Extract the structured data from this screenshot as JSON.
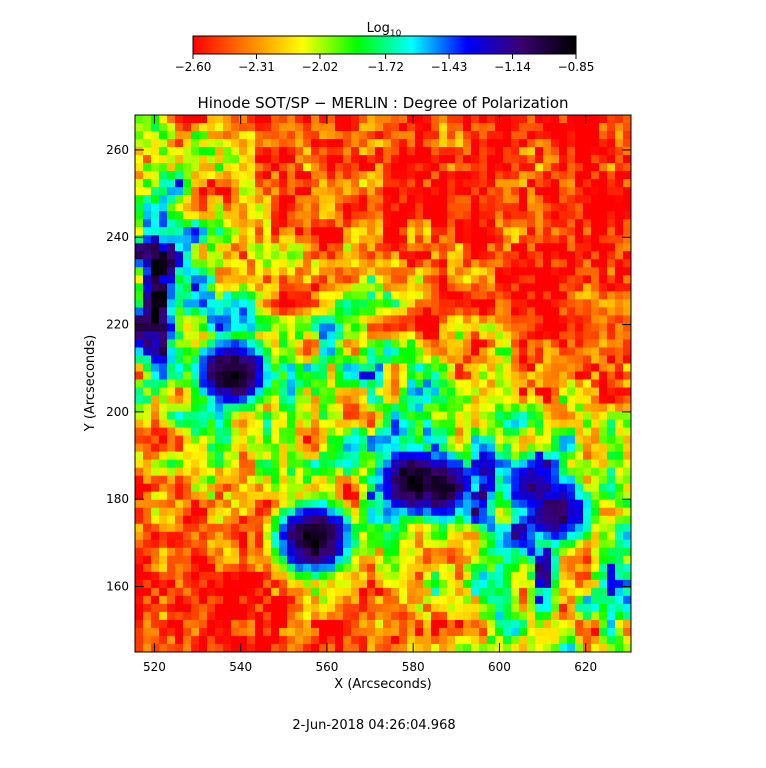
{
  "colorbar": {
    "label_base": "Log",
    "label_sub": "10",
    "tick_values": [
      -2.6,
      -2.31,
      -2.02,
      -1.72,
      -1.43,
      -1.14,
      -0.85
    ],
    "tick_labels": [
      "−2.60",
      "−2.31",
      "−2.02",
      "−1.72",
      "−1.43",
      "−1.14",
      "−0.85"
    ],
    "range": [
      -2.6,
      -0.85
    ],
    "colormap": [
      "#ff0000",
      "#ff7f00",
      "#ffff00",
      "#00ff00",
      "#00ffff",
      "#0000ff",
      "#3a0070",
      "#000000"
    ]
  },
  "chart_data": {
    "type": "heatmap",
    "title": "Hinode SOT/SP − MERLIN : Degree of Polarization",
    "xlabel": "X (Arcseconds)",
    "ylabel": "Y (Arcseconds)",
    "xlim": [
      515.5,
      630.5
    ],
    "ylim": [
      145,
      268
    ],
    "x_ticks": [
      520,
      540,
      560,
      580,
      600,
      620
    ],
    "y_ticks": [
      160,
      180,
      200,
      220,
      240,
      260
    ],
    "value_scale": "log10",
    "value_range": [
      -2.6,
      -0.85
    ],
    "grid": false,
    "features": [
      {
        "x": 538,
        "y": 209,
        "value": -0.9
      },
      {
        "x": 557,
        "y": 171,
        "value": -0.88
      },
      {
        "x": 580,
        "y": 184,
        "value": -0.87
      },
      {
        "x": 586,
        "y": 183,
        "value": -0.92
      },
      {
        "x": 613,
        "y": 177,
        "value": -1.05
      },
      {
        "x": 608,
        "y": 183,
        "value": -1.15
      }
    ]
  },
  "footer": {
    "timestamp": "2-Jun-2018 04:26:04.968"
  }
}
